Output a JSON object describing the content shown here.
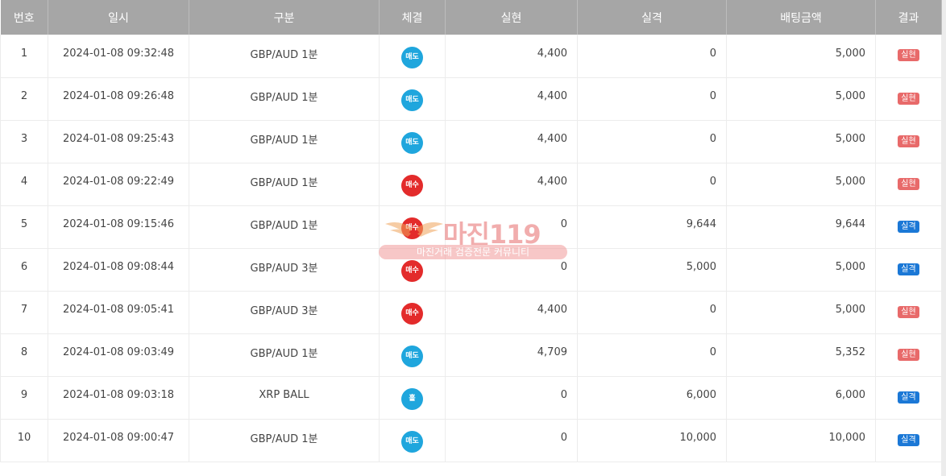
{
  "headers": {
    "no": "번호",
    "datetime": "일시",
    "category": "구분",
    "execution": "체결",
    "realized": "실현",
    "miss": "실격",
    "bet_amount": "배팅금액",
    "result": "결과"
  },
  "colors": {
    "sell": "#1fa6dd",
    "buy": "#e32b2b",
    "odd": "#1fa6dd",
    "realized_badge": "#e86a6a",
    "miss_badge": "#1b78d6"
  },
  "rows": [
    {
      "no": "1",
      "datetime": "2024-01-08 09:32:48",
      "category": "GBP/AUD 1분",
      "execution": "매도",
      "execution_type": "sell",
      "realized": "4,400",
      "miss": "0",
      "bet_amount": "5,000",
      "result": "실현",
      "result_type": "realized"
    },
    {
      "no": "2",
      "datetime": "2024-01-08 09:26:48",
      "category": "GBP/AUD 1분",
      "execution": "매도",
      "execution_type": "sell",
      "realized": "4,400",
      "miss": "0",
      "bet_amount": "5,000",
      "result": "실현",
      "result_type": "realized"
    },
    {
      "no": "3",
      "datetime": "2024-01-08 09:25:43",
      "category": "GBP/AUD 1분",
      "execution": "매도",
      "execution_type": "sell",
      "realized": "4,400",
      "miss": "0",
      "bet_amount": "5,000",
      "result": "실현",
      "result_type": "realized"
    },
    {
      "no": "4",
      "datetime": "2024-01-08 09:22:49",
      "category": "GBP/AUD 1분",
      "execution": "매수",
      "execution_type": "buy",
      "realized": "4,400",
      "miss": "0",
      "bet_amount": "5,000",
      "result": "실현",
      "result_type": "realized"
    },
    {
      "no": "5",
      "datetime": "2024-01-08 09:15:46",
      "category": "GBP/AUD 1분",
      "execution": "매수",
      "execution_type": "buy",
      "realized": "0",
      "miss": "9,644",
      "bet_amount": "9,644",
      "result": "실격",
      "result_type": "miss"
    },
    {
      "no": "6",
      "datetime": "2024-01-08 09:08:44",
      "category": "GBP/AUD 3분",
      "execution": "매수",
      "execution_type": "buy",
      "realized": "0",
      "miss": "5,000",
      "bet_amount": "5,000",
      "result": "실격",
      "result_type": "miss"
    },
    {
      "no": "7",
      "datetime": "2024-01-08 09:05:41",
      "category": "GBP/AUD 3분",
      "execution": "매수",
      "execution_type": "buy",
      "realized": "4,400",
      "miss": "0",
      "bet_amount": "5,000",
      "result": "실현",
      "result_type": "realized"
    },
    {
      "no": "8",
      "datetime": "2024-01-08 09:03:49",
      "category": "GBP/AUD 1분",
      "execution": "매도",
      "execution_type": "sell",
      "realized": "4,709",
      "miss": "0",
      "bet_amount": "5,352",
      "result": "실현",
      "result_type": "realized"
    },
    {
      "no": "9",
      "datetime": "2024-01-08 09:03:18",
      "category": "XRP BALL",
      "execution": "홀",
      "execution_type": "odd",
      "realized": "0",
      "miss": "6,000",
      "bet_amount": "6,000",
      "result": "실격",
      "result_type": "miss"
    },
    {
      "no": "10",
      "datetime": "2024-01-08 09:00:47",
      "category": "GBP/AUD 1분",
      "execution": "매도",
      "execution_type": "sell",
      "realized": "0",
      "miss": "10,000",
      "bet_amount": "10,000",
      "result": "실격",
      "result_type": "miss"
    }
  ],
  "watermark": {
    "title": "마진119",
    "subtitle": "마진거래 검증전문 커뮤니티"
  }
}
